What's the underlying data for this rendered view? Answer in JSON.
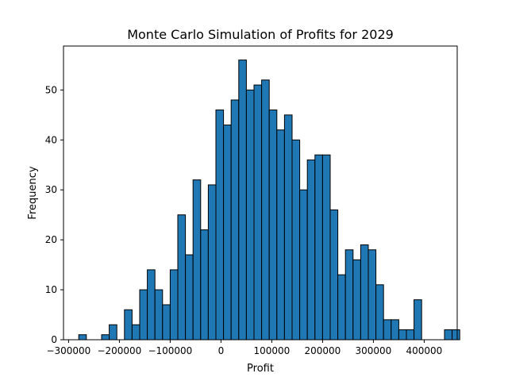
{
  "chart_data": {
    "type": "bar",
    "subtype": "histogram",
    "title": "Monte Carlo Simulation of Profits for 2029",
    "xlabel": "Profit",
    "ylabel": "Frequency",
    "bin_start": -280000,
    "bin_width": 15000,
    "values": [
      1,
      0,
      0,
      1,
      3,
      0,
      6,
      3,
      10,
      14,
      10,
      7,
      14,
      25,
      17,
      32,
      22,
      31,
      46,
      43,
      48,
      56,
      50,
      51,
      52,
      46,
      42,
      45,
      40,
      30,
      36,
      37,
      37,
      26,
      13,
      18,
      16,
      19,
      18,
      11,
      4,
      4,
      2,
      2,
      8,
      0,
      0,
      0,
      2,
      2
    ],
    "xlim": [
      -310000,
      465000
    ],
    "ylim": [
      0,
      58.8
    ],
    "xticks": [
      -300000,
      -200000,
      -100000,
      0,
      100000,
      200000,
      300000,
      400000
    ],
    "xtick_labels": [
      "−300000",
      "−200000",
      "−100000",
      "0",
      "100000",
      "200000",
      "300000",
      "400000"
    ],
    "yticks": [
      0,
      10,
      20,
      30,
      40,
      50
    ],
    "ytick_labels": [
      "0",
      "10",
      "20",
      "30",
      "40",
      "50"
    ],
    "grid": false,
    "legend": "none",
    "bar_color": "#1f77b4",
    "edge_color": "#000000"
  }
}
